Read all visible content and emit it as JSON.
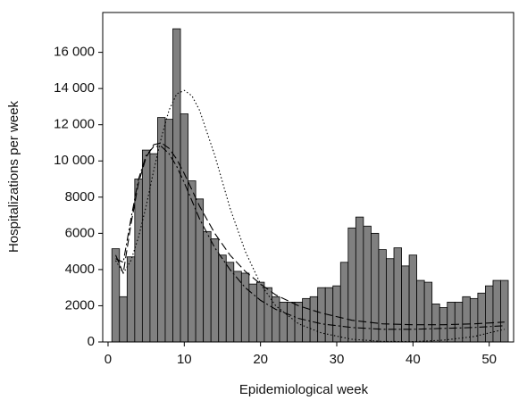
{
  "chart_data": {
    "type": "bar",
    "xlabel": "Epidemiological week",
    "ylabel": "Hospitalizations per week",
    "x": [
      1,
      2,
      3,
      4,
      5,
      6,
      7,
      8,
      9,
      10,
      11,
      12,
      13,
      14,
      15,
      16,
      17,
      18,
      19,
      20,
      21,
      22,
      23,
      24,
      25,
      26,
      27,
      28,
      29,
      30,
      31,
      32,
      33,
      34,
      35,
      36,
      37,
      38,
      39,
      40,
      41,
      42,
      43,
      44,
      45,
      46,
      47,
      48,
      49,
      50,
      51,
      52
    ],
    "values": [
      5150,
      2500,
      4700,
      9000,
      10600,
      10400,
      12400,
      12300,
      17300,
      12600,
      8900,
      7900,
      6100,
      5700,
      4800,
      4400,
      3900,
      3800,
      3200,
      3300,
      3000,
      2500,
      2200,
      2200,
      2200,
      2400,
      2500,
      3000,
      3000,
      3100,
      4400,
      6300,
      6900,
      6400,
      6000,
      5100,
      4600,
      5200,
      4200,
      4800,
      3400,
      3300,
      2100,
      1900,
      2200,
      2200,
      2500,
      2400,
      2700,
      3100,
      3400,
      3400
    ],
    "color": "#808080",
    "lines": [
      {
        "style": "dashed",
        "x": [
          1,
          2,
          3,
          4,
          5,
          6,
          7,
          8,
          9,
          10,
          11,
          12,
          14,
          16,
          18,
          20,
          22,
          25,
          28,
          32,
          36,
          40,
          44,
          48,
          52
        ],
        "values": [
          4800,
          3800,
          6500,
          8800,
          10200,
          10900,
          11000,
          10700,
          10100,
          9300,
          8400,
          7500,
          6000,
          4800,
          3900,
          3200,
          2600,
          2000,
          1600,
          1200,
          1000,
          950,
          950,
          1000,
          1100
        ]
      },
      {
        "style": "dashdot",
        "x": [
          1,
          2,
          3,
          4,
          5,
          6,
          7,
          8,
          9,
          10,
          11,
          12,
          14,
          16,
          18,
          20,
          22,
          25,
          28,
          32,
          36,
          40,
          44,
          48,
          52
        ],
        "values": [
          4600,
          4400,
          6800,
          9000,
          10300,
          10800,
          10800,
          10400,
          9700,
          8800,
          7800,
          6800,
          5200,
          4000,
          3000,
          2300,
          1800,
          1300,
          1000,
          800,
          700,
          700,
          750,
          800,
          900
        ]
      },
      {
        "style": "dotted",
        "x": [
          1,
          2,
          3,
          4,
          5,
          6,
          7,
          8,
          9,
          10,
          11,
          12,
          14,
          16,
          18,
          20,
          22,
          25,
          28,
          32,
          36,
          40,
          44,
          48,
          52
        ],
        "values": [
          4500,
          3800,
          4500,
          5800,
          7500,
          9500,
          11300,
          12800,
          13700,
          13900,
          13600,
          12800,
          10300,
          7400,
          5000,
          3200,
          2000,
          1000,
          500,
          150,
          30,
          20,
          100,
          300,
          700
        ]
      }
    ],
    "xlim": [
      -0.7,
      53.2
    ],
    "ylim": [
      0,
      18200
    ],
    "xticks": [
      0,
      10,
      20,
      30,
      40,
      50
    ],
    "yticks": [
      0,
      2000,
      4000,
      6000,
      8000,
      {
        "value": 10000,
        "label": "10 000"
      },
      {
        "value": 12000,
        "label": "12 000"
      },
      {
        "value": 14000,
        "label": "14 000"
      },
      {
        "value": 16000,
        "label": "16 000"
      }
    ]
  }
}
